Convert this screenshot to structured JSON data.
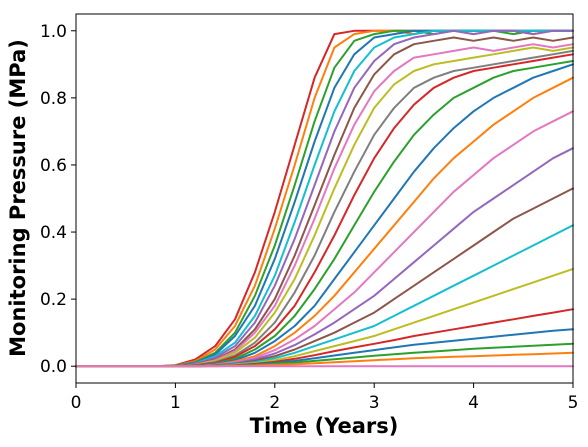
{
  "chart_data": {
    "type": "line",
    "xlabel": "Time (Years)",
    "ylabel": "Monitoring Pressure (MPa)",
    "xlim": [
      0,
      5
    ],
    "ylim": [
      -0.05,
      1.05
    ],
    "x_ticks": [
      "0",
      "1",
      "2",
      "3",
      "4",
      "5"
    ],
    "x_tick_values": [
      0,
      1,
      2,
      3,
      4,
      5
    ],
    "y_ticks": [
      "0.0",
      "0.2",
      "0.4",
      "0.6",
      "0.8",
      "1.0"
    ],
    "y_tick_values": [
      0.0,
      0.2,
      0.4,
      0.6,
      0.8,
      1.0
    ],
    "grid": false,
    "legend": "none",
    "x": [
      0,
      0.2,
      0.4,
      0.6,
      0.8,
      1.0,
      1.2,
      1.4,
      1.6,
      1.8,
      2.0,
      2.2,
      2.4,
      2.6,
      2.8,
      3.0,
      3.2,
      3.4,
      3.6,
      3.8,
      4.0,
      4.2,
      4.4,
      4.6,
      4.8,
      5.0
    ],
    "series": [
      {
        "color": "#d62728",
        "values": [
          0,
          0,
          0,
          0,
          0,
          0.003,
          0.02,
          0.06,
          0.14,
          0.28,
          0.46,
          0.66,
          0.86,
          0.99,
          1.0,
          1.0,
          1.0,
          1.0,
          1.0,
          1.0,
          1.0,
          1.0,
          1.0,
          1.0,
          1.0,
          1.0
        ]
      },
      {
        "color": "#ff7f0e",
        "values": [
          0,
          0,
          0,
          0,
          0,
          0.002,
          0.015,
          0.05,
          0.12,
          0.24,
          0.41,
          0.6,
          0.8,
          0.95,
          0.99,
          1.0,
          1.0,
          0.99,
          1.0,
          1.0,
          0.99,
          1.0,
          1.0,
          0.99,
          1.0,
          1.0
        ]
      },
      {
        "color": "#2ca02c",
        "values": [
          0,
          0,
          0,
          0,
          0,
          0.002,
          0.012,
          0.04,
          0.1,
          0.21,
          0.36,
          0.54,
          0.73,
          0.89,
          0.97,
          0.99,
          1.0,
          1.0,
          0.99,
          1.0,
          1.0,
          1.0,
          0.99,
          1.0,
          1.0,
          1.0
        ]
      },
      {
        "color": "#1f77b4",
        "values": [
          0,
          0,
          0,
          0,
          0,
          0.001,
          0.01,
          0.035,
          0.09,
          0.18,
          0.32,
          0.49,
          0.67,
          0.83,
          0.93,
          0.98,
          0.99,
          1.0,
          1.0,
          1.0,
          1.0,
          1.0,
          1.0,
          1.0,
          1.0,
          1.0
        ]
      },
      {
        "color": "#17becf",
        "values": [
          0,
          0,
          0,
          0,
          0,
          0.001,
          0.008,
          0.03,
          0.07,
          0.15,
          0.27,
          0.43,
          0.6,
          0.76,
          0.88,
          0.95,
          0.98,
          0.99,
          1.0,
          1.0,
          1.0,
          1.0,
          1.0,
          1.0,
          1.0,
          1.0
        ]
      },
      {
        "color": "#9467bd",
        "values": [
          0,
          0,
          0,
          0,
          0,
          0.001,
          0.007,
          0.025,
          0.06,
          0.13,
          0.24,
          0.38,
          0.54,
          0.7,
          0.83,
          0.91,
          0.96,
          0.98,
          0.99,
          1.0,
          0.99,
          1.0,
          1.0,
          0.99,
          1.0,
          1.0
        ]
      },
      {
        "color": "#8c564b",
        "values": [
          0,
          0,
          0,
          0,
          0,
          0.001,
          0.006,
          0.02,
          0.05,
          0.11,
          0.2,
          0.33,
          0.48,
          0.63,
          0.77,
          0.87,
          0.93,
          0.96,
          0.97,
          0.98,
          0.97,
          0.98,
          0.97,
          0.98,
          0.97,
          0.98
        ]
      },
      {
        "color": "#e377c2",
        "values": [
          0,
          0,
          0,
          0,
          0,
          0,
          0.005,
          0.018,
          0.045,
          0.1,
          0.18,
          0.3,
          0.44,
          0.59,
          0.72,
          0.82,
          0.88,
          0.92,
          0.93,
          0.94,
          0.95,
          0.94,
          0.95,
          0.96,
          0.95,
          0.96
        ]
      },
      {
        "color": "#bcbd22",
        "values": [
          0,
          0,
          0,
          0,
          0,
          0,
          0.004,
          0.015,
          0.04,
          0.085,
          0.16,
          0.26,
          0.39,
          0.53,
          0.66,
          0.77,
          0.84,
          0.88,
          0.9,
          0.91,
          0.92,
          0.93,
          0.94,
          0.95,
          0.94,
          0.95
        ]
      },
      {
        "color": "#7f7f7f",
        "values": [
          0,
          0,
          0,
          0,
          0,
          0,
          0.003,
          0.012,
          0.032,
          0.07,
          0.13,
          0.22,
          0.33,
          0.46,
          0.58,
          0.69,
          0.77,
          0.83,
          0.86,
          0.88,
          0.89,
          0.9,
          0.91,
          0.92,
          0.93,
          0.94
        ]
      },
      {
        "color": "#d62728",
        "values": [
          0,
          0,
          0,
          0,
          0,
          0,
          0.003,
          0.01,
          0.028,
          0.06,
          0.11,
          0.18,
          0.28,
          0.39,
          0.51,
          0.62,
          0.71,
          0.78,
          0.83,
          0.86,
          0.88,
          0.89,
          0.9,
          0.91,
          0.92,
          0.93
        ]
      },
      {
        "color": "#2ca02c",
        "values": [
          0,
          0,
          0,
          0,
          0,
          0,
          0.002,
          0.008,
          0.022,
          0.05,
          0.09,
          0.15,
          0.23,
          0.32,
          0.42,
          0.52,
          0.61,
          0.69,
          0.75,
          0.8,
          0.83,
          0.86,
          0.88,
          0.89,
          0.9,
          0.91
        ]
      },
      {
        "color": "#1f77b4",
        "values": [
          0,
          0,
          0,
          0,
          0,
          0,
          0.002,
          0.007,
          0.018,
          0.04,
          0.075,
          0.12,
          0.18,
          0.26,
          0.34,
          0.42,
          0.5,
          0.58,
          0.65,
          0.71,
          0.76,
          0.8,
          0.83,
          0.86,
          0.88,
          0.9
        ]
      },
      {
        "color": "#ff7f0e",
        "values": [
          0,
          0,
          0,
          0,
          0,
          0,
          0.001,
          0.005,
          0.014,
          0.03,
          0.06,
          0.1,
          0.15,
          0.21,
          0.28,
          0.35,
          0.42,
          0.49,
          0.56,
          0.62,
          0.67,
          0.72,
          0.76,
          0.8,
          0.83,
          0.86
        ]
      },
      {
        "color": "#e377c2",
        "values": [
          0,
          0,
          0,
          0,
          0,
          0,
          0.001,
          0.004,
          0.011,
          0.025,
          0.048,
          0.08,
          0.12,
          0.17,
          0.22,
          0.28,
          0.34,
          0.4,
          0.46,
          0.52,
          0.57,
          0.62,
          0.66,
          0.7,
          0.73,
          0.76
        ]
      },
      {
        "color": "#9467bd",
        "values": [
          0,
          0,
          0,
          0,
          0,
          0,
          0.001,
          0.003,
          0.009,
          0.02,
          0.038,
          0.063,
          0.095,
          0.13,
          0.17,
          0.21,
          0.26,
          0.31,
          0.36,
          0.41,
          0.46,
          0.5,
          0.54,
          0.58,
          0.62,
          0.65
        ]
      },
      {
        "color": "#8c564b",
        "values": [
          0,
          0,
          0,
          0,
          0,
          0,
          0.001,
          0.003,
          0.007,
          0.016,
          0.03,
          0.05,
          0.075,
          0.1,
          0.13,
          0.16,
          0.2,
          0.24,
          0.28,
          0.32,
          0.36,
          0.4,
          0.44,
          0.47,
          0.5,
          0.53
        ]
      },
      {
        "color": "#17becf",
        "values": [
          0,
          0,
          0,
          0,
          0,
          0,
          0,
          0.002,
          0.006,
          0.012,
          0.024,
          0.04,
          0.06,
          0.08,
          0.1,
          0.12,
          0.15,
          0.18,
          0.21,
          0.24,
          0.27,
          0.3,
          0.33,
          0.36,
          0.39,
          0.42
        ]
      },
      {
        "color": "#bcbd22",
        "values": [
          0,
          0,
          0,
          0,
          0,
          0,
          0,
          0.002,
          0.004,
          0.009,
          0.018,
          0.03,
          0.045,
          0.06,
          0.075,
          0.09,
          0.11,
          0.13,
          0.15,
          0.17,
          0.19,
          0.21,
          0.23,
          0.25,
          0.27,
          0.29
        ]
      },
      {
        "color": "#d62728",
        "values": [
          0,
          0,
          0,
          0,
          0,
          0,
          0,
          0.001,
          0.003,
          0.007,
          0.013,
          0.022,
          0.033,
          0.045,
          0.056,
          0.067,
          0.078,
          0.09,
          0.1,
          0.11,
          0.12,
          0.13,
          0.14,
          0.15,
          0.16,
          0.17
        ]
      },
      {
        "color": "#1f77b4",
        "values": [
          0,
          0,
          0,
          0,
          0,
          0,
          0,
          0.001,
          0.002,
          0.005,
          0.01,
          0.016,
          0.024,
          0.032,
          0.04,
          0.048,
          0.056,
          0.064,
          0.07,
          0.076,
          0.082,
          0.088,
          0.094,
          0.1,
          0.106,
          0.11
        ]
      },
      {
        "color": "#2ca02c",
        "values": [
          0,
          0,
          0,
          0,
          0,
          0,
          0,
          0.001,
          0.002,
          0.004,
          0.007,
          0.011,
          0.016,
          0.021,
          0.026,
          0.031,
          0.036,
          0.04,
          0.044,
          0.048,
          0.052,
          0.055,
          0.058,
          0.061,
          0.064,
          0.067
        ]
      },
      {
        "color": "#ff7f0e",
        "values": [
          0,
          0,
          0,
          0,
          0,
          0,
          0,
          0,
          0.001,
          0.002,
          0.004,
          0.006,
          0.009,
          0.012,
          0.015,
          0.018,
          0.021,
          0.024,
          0.026,
          0.028,
          0.03,
          0.032,
          0.034,
          0.036,
          0.038,
          0.04
        ]
      },
      {
        "color": "#e377c2",
        "values": [
          0,
          0,
          0,
          0,
          0,
          0,
          0,
          0,
          0,
          0,
          0,
          0,
          0,
          0,
          0,
          0,
          0,
          0,
          0,
          0,
          0,
          0,
          0,
          0,
          0,
          0
        ]
      }
    ]
  }
}
